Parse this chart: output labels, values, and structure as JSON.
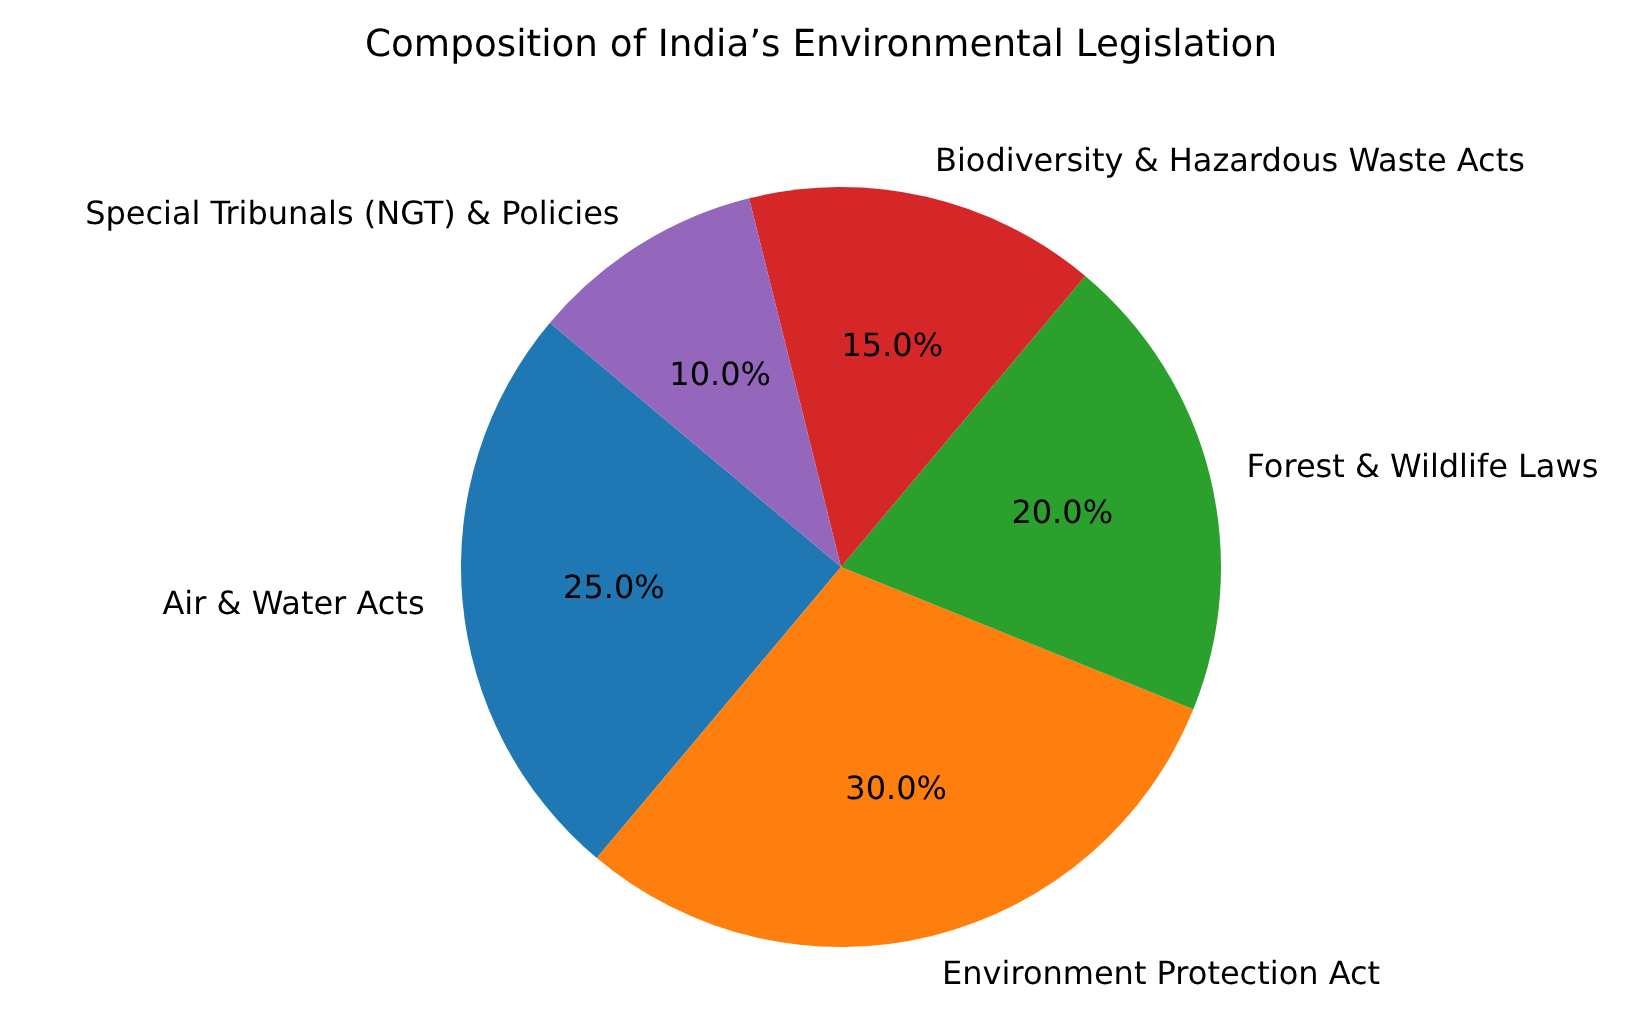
{
  "chart_data": {
    "type": "pie",
    "title": "Composition of India’s Environmental Legislation",
    "categories": [
      "Air & Water Acts",
      "Environment Protection Act",
      "Forest & Wildlife Laws",
      "Biodiversity & Hazardous Waste Acts",
      "Special Tribunals (NGT) & Policies"
    ],
    "values": [
      25,
      30,
      20,
      15,
      10
    ],
    "colors": [
      "#1f77b4",
      "#ff7f0e",
      "#2ca02c",
      "#d62728",
      "#9467bd"
    ],
    "value_labels": [
      "25.0%",
      "30.0%",
      "20.0%",
      "15.0%",
      "10.0%"
    ],
    "legend": false
  }
}
